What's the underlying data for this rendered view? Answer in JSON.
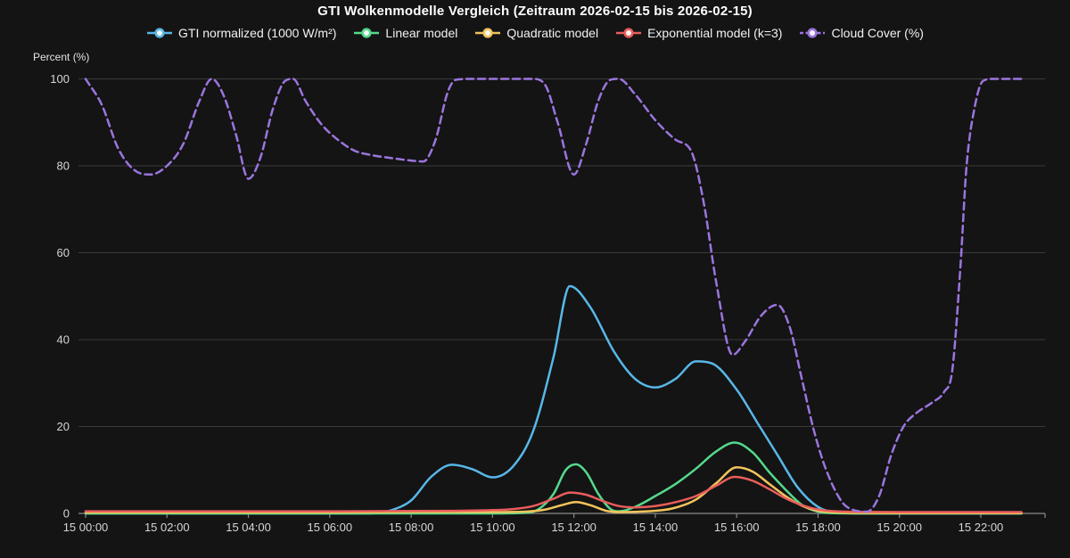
{
  "title": "GTI Wolkenmodelle Vergleich (Zeitraum 2026-02-15 bis 2026-02-15)",
  "y_axis_title": "Percent (%)",
  "colors": {
    "background": "#141414",
    "title_text": "#ffffff",
    "legend_text": "#f2f2f2",
    "tick_text": "#d6d6d6",
    "gridline": "#3a3a3a",
    "axis_line": "#8a8a8a",
    "legend_marker_fill": "#f7f7f7"
  },
  "chart_data": {
    "type": "line",
    "title": "GTI Wolkenmodelle Vergleich (Zeitraum 2026-02-15 bis 2026-02-15)",
    "xlabel": "",
    "ylabel": "Percent (%)",
    "ylim": [
      0,
      100
    ],
    "grid": "horizontal-only",
    "legend_position": "top",
    "x_unit": "time of day on 2026-02-15 (hours)",
    "y_ticks": [
      0,
      20,
      40,
      60,
      80,
      100
    ],
    "x_tick_hours": [
      0,
      2,
      4,
      6,
      8,
      10,
      12,
      14,
      16,
      18,
      20,
      22
    ],
    "x_tick_labels": [
      "15 00:00",
      "15 02:00",
      "15 04:00",
      "15 06:00",
      "15 08:00",
      "15 10:00",
      "15 12:00",
      "15 14:00",
      "15 16:00",
      "15 18:00",
      "15 20:00",
      "15 22:00"
    ],
    "series": [
      {
        "name": "GTI normalized (1000 W/m²)",
        "slug": "gti-normalized",
        "color": "#58b7e8",
        "style": "solid",
        "points": [
          [
            0,
            0
          ],
          [
            1,
            0
          ],
          [
            2,
            0
          ],
          [
            3,
            0
          ],
          [
            4,
            0
          ],
          [
            5,
            0
          ],
          [
            6,
            0
          ],
          [
            7,
            0
          ],
          [
            7.5,
            0.7
          ],
          [
            8,
            3
          ],
          [
            8.5,
            8.5
          ],
          [
            9,
            11.2
          ],
          [
            9.5,
            10.2
          ],
          [
            10,
            8.3
          ],
          [
            10.5,
            10.8
          ],
          [
            11,
            19
          ],
          [
            11.5,
            36
          ],
          [
            11.9,
            52.3
          ],
          [
            12.4,
            47.5
          ],
          [
            13,
            37
          ],
          [
            13.5,
            31
          ],
          [
            14,
            29
          ],
          [
            14.5,
            31
          ],
          [
            15,
            35
          ],
          [
            15.4,
            34.5
          ],
          [
            16,
            28.5
          ],
          [
            16.5,
            21
          ],
          [
            17,
            13.5
          ],
          [
            17.5,
            6
          ],
          [
            18,
            1.5
          ],
          [
            18.4,
            0.3
          ],
          [
            19,
            0
          ],
          [
            20,
            0
          ],
          [
            21,
            0
          ],
          [
            22,
            0
          ],
          [
            23,
            0
          ]
        ]
      },
      {
        "name": "Linear model",
        "slug": "linear-model",
        "color": "#55d98c",
        "style": "solid",
        "points": [
          [
            0,
            0
          ],
          [
            2,
            0
          ],
          [
            4,
            0
          ],
          [
            6,
            0
          ],
          [
            8,
            0
          ],
          [
            10,
            0
          ],
          [
            10.7,
            0.1
          ],
          [
            11.1,
            0.8
          ],
          [
            11.5,
            4.5
          ],
          [
            11.8,
            10
          ],
          [
            12.05,
            11.3
          ],
          [
            12.3,
            9.5
          ],
          [
            12.6,
            4.5
          ],
          [
            12.9,
            1
          ],
          [
            13.1,
            0.5
          ],
          [
            13.5,
            1.5
          ],
          [
            14,
            4
          ],
          [
            14.5,
            6.8
          ],
          [
            15,
            10.3
          ],
          [
            15.5,
            14.3
          ],
          [
            15.95,
            16.3
          ],
          [
            16.4,
            14
          ],
          [
            16.8,
            9.5
          ],
          [
            17.2,
            5.5
          ],
          [
            17.6,
            2
          ],
          [
            18,
            0.4
          ],
          [
            18.4,
            0.05
          ],
          [
            19,
            0
          ],
          [
            20,
            0
          ],
          [
            21,
            0
          ],
          [
            22,
            0
          ],
          [
            23,
            0
          ]
        ]
      },
      {
        "name": "Quadratic model",
        "slug": "quadratic-model",
        "color": "#f2c45c",
        "style": "solid",
        "points": [
          [
            0,
            0.2
          ],
          [
            2,
            0.2
          ],
          [
            4,
            0.2
          ],
          [
            6,
            0.2
          ],
          [
            8,
            0.3
          ],
          [
            9,
            0.3
          ],
          [
            10,
            0.3
          ],
          [
            10.8,
            0.4
          ],
          [
            11.3,
            0.9
          ],
          [
            11.7,
            1.9
          ],
          [
            12.05,
            2.6
          ],
          [
            12.4,
            1.9
          ],
          [
            12.8,
            0.6
          ],
          [
            13.2,
            0.3
          ],
          [
            13.8,
            0.5
          ],
          [
            14.4,
            1.1
          ],
          [
            15,
            3.2
          ],
          [
            15.5,
            7
          ],
          [
            16,
            10.6
          ],
          [
            16.4,
            9.6
          ],
          [
            16.8,
            6.8
          ],
          [
            17.2,
            4
          ],
          [
            17.6,
            1.8
          ],
          [
            18,
            0.6
          ],
          [
            18.5,
            0.2
          ],
          [
            19,
            0.1
          ],
          [
            20,
            0.05
          ],
          [
            21,
            0.05
          ],
          [
            22,
            0.05
          ],
          [
            23,
            0.05
          ]
        ]
      },
      {
        "name": "Exponential model (k=3)",
        "slug": "exponential-model",
        "color": "#e85d5c",
        "style": "solid",
        "points": [
          [
            0,
            0.5
          ],
          [
            2,
            0.5
          ],
          [
            4,
            0.5
          ],
          [
            6,
            0.5
          ],
          [
            8,
            0.55
          ],
          [
            9,
            0.6
          ],
          [
            10,
            0.75
          ],
          [
            10.5,
            1
          ],
          [
            11,
            1.7
          ],
          [
            11.5,
            3.4
          ],
          [
            11.9,
            4.8
          ],
          [
            12.3,
            4.3
          ],
          [
            12.7,
            2.9
          ],
          [
            13.1,
            1.7
          ],
          [
            13.5,
            1.4
          ],
          [
            14,
            1.7
          ],
          [
            14.5,
            2.6
          ],
          [
            15,
            4
          ],
          [
            15.5,
            6.4
          ],
          [
            15.95,
            8.4
          ],
          [
            16.4,
            7.5
          ],
          [
            16.8,
            5.6
          ],
          [
            17.2,
            3.5
          ],
          [
            17.6,
            1.9
          ],
          [
            18,
            0.9
          ],
          [
            18.5,
            0.45
          ],
          [
            19,
            0.35
          ],
          [
            20,
            0.3
          ],
          [
            21,
            0.3
          ],
          [
            22,
            0.3
          ],
          [
            23,
            0.3
          ]
        ]
      },
      {
        "name": "Cloud Cover (%)",
        "slug": "cloud-cover",
        "color": "#9b75de",
        "style": "dashed",
        "points": [
          [
            0,
            100
          ],
          [
            0.4,
            94
          ],
          [
            0.8,
            84
          ],
          [
            1.2,
            79
          ],
          [
            1.6,
            78
          ],
          [
            2,
            80
          ],
          [
            2.4,
            85
          ],
          [
            2.8,
            95
          ],
          [
            3.1,
            100
          ],
          [
            3.4,
            96
          ],
          [
            3.7,
            87
          ],
          [
            4,
            77
          ],
          [
            4.3,
            82
          ],
          [
            4.6,
            93
          ],
          [
            4.9,
            99.5
          ],
          [
            5.1,
            100
          ],
          [
            5.4,
            95
          ],
          [
            5.8,
            89.5
          ],
          [
            6.2,
            86
          ],
          [
            6.6,
            83.5
          ],
          [
            7,
            82.5
          ],
          [
            7.5,
            81.8
          ],
          [
            8,
            81.2
          ],
          [
            8.3,
            81
          ],
          [
            8.6,
            86
          ],
          [
            8.9,
            97
          ],
          [
            9.1,
            99.8
          ],
          [
            9.5,
            100
          ],
          [
            10,
            100
          ],
          [
            10.5,
            100
          ],
          [
            11,
            100
          ],
          [
            11.3,
            98.5
          ],
          [
            11.6,
            90
          ],
          [
            12,
            78
          ],
          [
            12.3,
            85
          ],
          [
            12.6,
            95
          ],
          [
            12.9,
            99.8
          ],
          [
            13.1,
            100
          ],
          [
            13.5,
            96.5
          ],
          [
            14,
            90.5
          ],
          [
            14.5,
            86
          ],
          [
            14.9,
            83
          ],
          [
            15.2,
            71
          ],
          [
            15.5,
            53
          ],
          [
            15.9,
            36.5
          ],
          [
            16.2,
            39.5
          ],
          [
            16.6,
            45.5
          ],
          [
            17,
            48
          ],
          [
            17.3,
            43
          ],
          [
            17.6,
            31
          ],
          [
            17.9,
            19
          ],
          [
            18.2,
            10
          ],
          [
            18.6,
            2.5
          ],
          [
            18.9,
            0.7
          ],
          [
            19.2,
            0.4
          ],
          [
            19.5,
            4
          ],
          [
            19.8,
            13.5
          ],
          [
            20.1,
            20
          ],
          [
            20.4,
            23
          ],
          [
            20.8,
            25.5
          ],
          [
            21.1,
            28
          ],
          [
            21.3,
            33
          ],
          [
            21.5,
            57
          ],
          [
            21.65,
            80
          ],
          [
            21.85,
            93.5
          ],
          [
            22.05,
            99.5
          ],
          [
            22.3,
            100
          ],
          [
            22.6,
            100
          ],
          [
            23,
            100
          ]
        ]
      }
    ]
  }
}
